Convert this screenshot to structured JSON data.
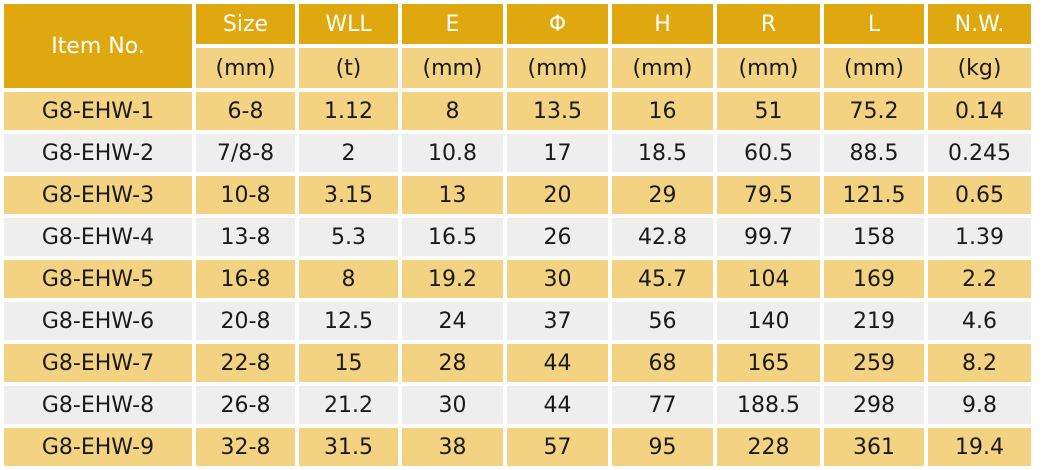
{
  "table": {
    "item_header": "Item No.",
    "columns": [
      {
        "name": "Size",
        "unit": "(mm)"
      },
      {
        "name": "WLL",
        "unit": "(t)"
      },
      {
        "name": "E",
        "unit": "(mm)"
      },
      {
        "name": "Φ",
        "unit": "(mm)"
      },
      {
        "name": "H",
        "unit": "(mm)"
      },
      {
        "name": "R",
        "unit": "(mm)"
      },
      {
        "name": "L",
        "unit": "(mm)"
      },
      {
        "name": "N.W.",
        "unit": "(kg)"
      }
    ],
    "rows": [
      [
        "G8-EHW-1",
        "6-8",
        "1.12",
        "8",
        "13.5",
        "16",
        "51",
        "75.2",
        "0.14"
      ],
      [
        "G8-EHW-2",
        "7/8-8",
        "2",
        "10.8",
        "17",
        "18.5",
        "60.5",
        "88.5",
        "0.245"
      ],
      [
        "G8-EHW-3",
        "10-8",
        "3.15",
        "13",
        "20",
        "29",
        "79.5",
        "121.5",
        "0.65"
      ],
      [
        "G8-EHW-4",
        "13-8",
        "5.3",
        "16.5",
        "26",
        "42.8",
        "99.7",
        "158",
        "1.39"
      ],
      [
        "G8-EHW-5",
        "16-8",
        "8",
        "19.2",
        "30",
        "45.7",
        "104",
        "169",
        "2.2"
      ],
      [
        "G8-EHW-6",
        "20-8",
        "12.5",
        "24",
        "37",
        "56",
        "140",
        "219",
        "4.6"
      ],
      [
        "G8-EHW-7",
        "22-8",
        "15",
        "28",
        "44",
        "68",
        "165",
        "259",
        "8.2"
      ],
      [
        "G8-EHW-8",
        "26-8",
        "21.2",
        "30",
        "44",
        "77",
        "188.5",
        "298",
        "9.8"
      ],
      [
        "G8-EHW-9",
        "32-8",
        "31.5",
        "38",
        "57",
        "95",
        "228",
        "361",
        "19.4"
      ]
    ]
  },
  "colors": {
    "header_gold": "#dfa80e",
    "row_light_gold": "#f3d382",
    "row_grey": "#eeeeee",
    "header_text": "#ffffff",
    "body_text": "#1a1a1a"
  }
}
